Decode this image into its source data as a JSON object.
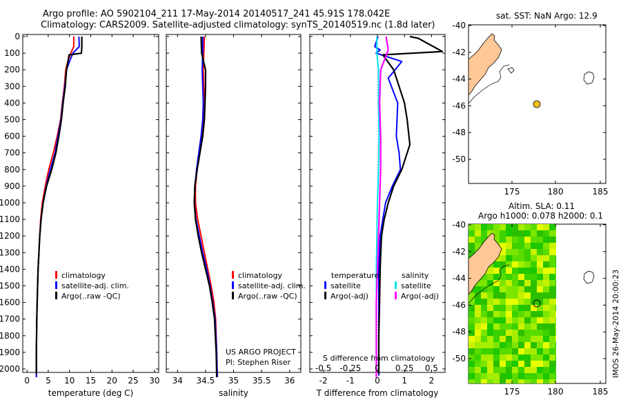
{
  "header": {
    "line1": "Argo profile: AO 5902104_211 17-May-2014 20140517_241 45.91S 178.042E",
    "line2": "Climatology: CARS2009. Satellite-adjusted climatology: synTS_20140519.nc (1.8d later)"
  },
  "colors": {
    "climatology": "#ff0000",
    "satellite": "#0000ff",
    "argo": "#000000",
    "cyan": "#00e5ee",
    "magenta": "#ff00ff",
    "land": "#ffc896",
    "sla_high": "#e8ff00",
    "sla_low": "#00c800",
    "argo_marker": "#f2c318"
  },
  "panels": {
    "temperature": {
      "xlabel": "temperature (deg C)",
      "legend": [
        "climatology",
        "satellite-adj. clim.",
        "Argo(..raw -QC)"
      ]
    },
    "salinity": {
      "xlabel": "salinity",
      "legend": [
        "climatology",
        "satellite-adj. clim.",
        "Argo(..raw -QC)"
      ],
      "credit1": "US ARGO PROJECT",
      "credit2": "PI: Stephen Riser"
    },
    "difference": {
      "xlabel": "T difference from climatology",
      "s_label": "S difference from climatology",
      "s_ticks": [
        "-0.5",
        "-0.25",
        "0",
        "0.25",
        "0.5"
      ],
      "legend_temp_title": "temperature",
      "legend_sal_title": "salinity",
      "legend_temp": [
        "satellite",
        "Argo(-adj)"
      ],
      "legend_sal": [
        "satellite",
        "Argo(-adj)"
      ]
    }
  },
  "depth_ticks": [
    "0",
    "100",
    "200",
    "300",
    "400",
    "500",
    "600",
    "700",
    "800",
    "900",
    "1000",
    "1100",
    "1200",
    "1300",
    "1400",
    "1500",
    "1600",
    "1700",
    "1800",
    "1900",
    "2000"
  ],
  "map_sst": {
    "title": "sat. SST: NaN Argo: 12.9",
    "yticks": [
      "-40",
      "-42",
      "-44",
      "-46",
      "-48",
      "-50"
    ],
    "xticks": [
      "175",
      "180",
      "185"
    ]
  },
  "map_sla": {
    "title1": "Altim. SLA: 0.11",
    "title2": "Argo h1000: 0.078 h2000: 0.1",
    "yticks": [
      "-40",
      "-42",
      "-44",
      "-46",
      "-48",
      "-50"
    ],
    "xticks": [
      "175",
      "180",
      "185"
    ]
  },
  "watermark": "IMOS 26-May-2014 20:00:23",
  "chart_data": [
    {
      "type": "line",
      "xlabel": "temperature (deg C)",
      "ylabel": "",
      "xlim": [
        -1,
        31
      ],
      "ylim": [
        2080,
        0
      ],
      "xticks": [
        0,
        5,
        10,
        15,
        20,
        25,
        30
      ],
      "series": [
        {
          "name": "climatology",
          "x": [
            11.0,
            11.0,
            10.3,
            9.6,
            9.1,
            8.8,
            8.3,
            7.9,
            7.1,
            6.2,
            5.1,
            4.3,
            3.6,
            3.2,
            3.0,
            2.8,
            2.6,
            2.5,
            2.4,
            2.3,
            2.2,
            2.2
          ],
          "y": [
            0,
            60,
            100,
            150,
            200,
            300,
            400,
            500,
            600,
            700,
            800,
            900,
            1000,
            1100,
            1200,
            1300,
            1400,
            1500,
            1600,
            1700,
            1900,
            2050
          ]
        },
        {
          "name": "satellite-adj. clim.",
          "x": [
            12.2,
            12.3,
            10.8,
            10.0,
            9.3,
            8.9,
            8.4,
            8.0,
            7.3,
            6.6,
            5.5,
            4.5,
            3.8,
            3.3,
            3.0,
            2.8,
            2.6,
            2.5,
            2.4,
            2.3,
            2.2,
            2.2
          ],
          "y": [
            0,
            60,
            100,
            150,
            200,
            300,
            400,
            500,
            600,
            700,
            800,
            900,
            1000,
            1100,
            1200,
            1300,
            1400,
            1500,
            1600,
            1700,
            1900,
            2050
          ]
        },
        {
          "name": "Argo(..raw -QC)",
          "x": [
            12.9,
            12.9,
            12.8,
            9.9,
            9.3,
            9.0,
            8.5,
            8.1,
            7.5,
            6.8,
            5.8,
            4.6,
            3.8,
            3.3,
            3.0,
            2.8,
            2.6,
            2.5,
            2.4,
            2.3,
            2.2,
            2.2
          ],
          "y": [
            0,
            60,
            100,
            110,
            200,
            300,
            400,
            500,
            600,
            700,
            800,
            900,
            1000,
            1100,
            1200,
            1300,
            1400,
            1500,
            1600,
            1700,
            1900,
            2030
          ]
        }
      ]
    },
    {
      "type": "line",
      "xlabel": "salinity",
      "ylabel": "",
      "xlim": [
        33.8,
        36.2
      ],
      "ylim": [
        2080,
        0
      ],
      "xticks": [
        34,
        34.5,
        35,
        35.5,
        36
      ],
      "series": [
        {
          "name": "climatology",
          "x": [
            34.48,
            34.47,
            34.46,
            34.47,
            34.48,
            34.47,
            34.43,
            34.39,
            34.35,
            34.32,
            34.32,
            34.36,
            34.42,
            34.48,
            34.54,
            34.6,
            34.65,
            34.68,
            34.7,
            34.71
          ],
          "y": [
            0,
            100,
            200,
            300,
            400,
            500,
            600,
            700,
            800,
            900,
            1000,
            1100,
            1200,
            1300,
            1400,
            1500,
            1600,
            1700,
            1900,
            2050
          ]
        },
        {
          "name": "satellite-adj. clim.",
          "x": [
            34.45,
            34.45,
            34.44,
            34.45,
            34.46,
            34.45,
            34.42,
            34.38,
            34.34,
            34.31,
            34.3,
            34.33,
            34.39,
            34.45,
            34.52,
            34.58,
            34.63,
            34.67,
            34.7,
            34.71
          ],
          "y": [
            0,
            100,
            200,
            300,
            400,
            500,
            600,
            700,
            800,
            900,
            1000,
            1100,
            1200,
            1300,
            1400,
            1500,
            1600,
            1700,
            1900,
            2050
          ]
        },
        {
          "name": "Argo(..raw -QC)",
          "x": [
            34.42,
            34.43,
            34.5,
            34.5,
            34.49,
            34.48,
            34.45,
            34.4,
            34.35,
            34.31,
            34.3,
            34.32,
            34.37,
            34.43,
            34.5,
            34.57,
            34.62,
            34.66,
            34.69,
            34.7
          ],
          "y": [
            0,
            100,
            200,
            300,
            400,
            500,
            600,
            700,
            800,
            900,
            1000,
            1100,
            1200,
            1300,
            1400,
            1500,
            1600,
            1700,
            1900,
            2050
          ]
        }
      ]
    },
    {
      "type": "line",
      "xlabel": "T difference from climatology",
      "x2label": "S difference from climatology",
      "xlim": [
        -2.5,
        2.5
      ],
      "x2lim": [
        -0.625,
        0.625
      ],
      "ylim": [
        2080,
        0
      ],
      "xticks": [
        -2,
        -1,
        0,
        1,
        2
      ],
      "x2ticks": [
        -0.5,
        -0.25,
        0,
        0.25,
        0.5
      ],
      "series": [
        {
          "name": "temperature satellite",
          "x": [
            0.02,
            -0.1,
            0.1,
            -0.05,
            0.9,
            0.4,
            0.75,
            0.7,
            0.8,
            0.85,
            0.55,
            0.3,
            0.2,
            0.1,
            0.05,
            0.05,
            0.05,
            0.05,
            0.05,
            0.05
          ],
          "y": [
            0,
            60,
            80,
            100,
            150,
            250,
            400,
            600,
            700,
            800,
            900,
            1000,
            1100,
            1200,
            1400,
            1600,
            1800,
            1900,
            2000,
            2040
          ]
        },
        {
          "name": "temperature Argo(-adj)",
          "x": [
            1.2,
            1.5,
            2.4,
            0.2,
            0.6,
            0.8,
            1.0,
            1.1,
            1.2,
            0.9,
            0.6,
            0.4,
            0.25,
            0.15,
            0.1,
            0.08,
            0.05,
            0.05,
            0.05
          ],
          "y": [
            0,
            10,
            90,
            110,
            200,
            300,
            400,
            500,
            650,
            800,
            900,
            1000,
            1100,
            1200,
            1400,
            1600,
            1800,
            2000,
            2030
          ]
        },
        {
          "name": "salinity satellite",
          "x": [
            -0.005,
            -0.005,
            0.01,
            0.01,
            0.015,
            0.01,
            0.0,
            -0.005,
            -0.01,
            -0.01,
            -0.01,
            -0.01,
            -0.01
          ],
          "y": [
            0,
            100,
            200,
            400,
            600,
            800,
            1000,
            1200,
            1400,
            1600,
            1800,
            2000,
            2050
          ]
        },
        {
          "name": "salinity Argo(-adj)",
          "x": [
            0.08,
            0.1,
            0.03,
            0.02,
            0.03,
            0.03,
            0.02,
            0.01,
            0.0,
            -0.01,
            -0.01,
            -0.01,
            -0.01
          ],
          "y": [
            0,
            80,
            200,
            400,
            600,
            800,
            1000,
            1200,
            1400,
            1600,
            1800,
            2000,
            2050
          ]
        }
      ]
    }
  ]
}
